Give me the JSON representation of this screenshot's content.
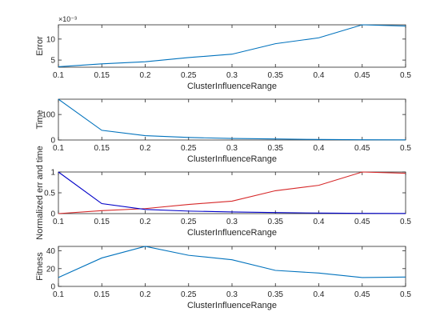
{
  "chart_data": [
    {
      "type": "line",
      "xlabel": "ClusterInfluenceRange",
      "ylabel": "Error",
      "y_exponent_label": "×10⁻³",
      "x": [
        0.1,
        0.15,
        0.2,
        0.25,
        0.3,
        0.35,
        0.4,
        0.45,
        0.5
      ],
      "xticks": [
        "0.1",
        "0.15",
        "0.2",
        "0.25",
        "0.3",
        "0.35",
        "0.4",
        "0.45",
        "0.5"
      ],
      "yticks": [
        "5",
        "10"
      ],
      "ytick_values": [
        5,
        10
      ],
      "xlim": [
        0.1,
        0.5
      ],
      "ylim": [
        3.3,
        13.4
      ],
      "series": [
        {
          "color": "#0072BD",
          "values": [
            3.4,
            4.1,
            4.6,
            5.6,
            6.4,
            8.9,
            10.3,
            13.4,
            13.1
          ]
        }
      ]
    },
    {
      "type": "line",
      "xlabel": "ClusterInfluenceRange",
      "ylabel": "Time",
      "x": [
        0.1,
        0.15,
        0.2,
        0.25,
        0.3,
        0.35,
        0.4,
        0.45,
        0.5
      ],
      "xticks": [
        "0.1",
        "0.15",
        "0.2",
        "0.25",
        "0.3",
        "0.35",
        "0.4",
        "0.45",
        "0.5"
      ],
      "yticks": [
        "0",
        "100"
      ],
      "ytick_values": [
        0,
        100
      ],
      "xlim": [
        0.1,
        0.5
      ],
      "ylim": [
        0,
        160
      ],
      "series": [
        {
          "color": "#0072BD",
          "values": [
            160,
            38,
            17,
            10,
            6,
            4,
            2,
            1,
            0.5
          ]
        }
      ]
    },
    {
      "type": "line",
      "xlabel": "ClusterInfluenceRange",
      "ylabel": "Normalized err and time",
      "x": [
        0.1,
        0.15,
        0.2,
        0.25,
        0.3,
        0.35,
        0.4,
        0.45,
        0.5
      ],
      "xticks": [
        "0.1",
        "0.15",
        "0.2",
        "0.25",
        "0.3",
        "0.35",
        "0.4",
        "0.45",
        "0.5"
      ],
      "yticks": [
        "0",
        "0.5",
        "1"
      ],
      "ytick_values": [
        0,
        0.5,
        1
      ],
      "xlim": [
        0.1,
        0.5
      ],
      "ylim": [
        0,
        1
      ],
      "series": [
        {
          "color": "#D62728",
          "values": [
            0,
            0.07,
            0.12,
            0.22,
            0.3,
            0.55,
            0.68,
            1.0,
            0.97
          ]
        },
        {
          "color": "#0000C8",
          "values": [
            1.0,
            0.24,
            0.1,
            0.06,
            0.04,
            0.025,
            0.013,
            0.006,
            0.003
          ]
        }
      ]
    },
    {
      "type": "line",
      "xlabel": "ClusterInfluenceRange",
      "ylabel": "Fitness",
      "x": [
        0.1,
        0.15,
        0.2,
        0.25,
        0.3,
        0.35,
        0.4,
        0.45,
        0.5
      ],
      "xticks": [
        "0.1",
        "0.15",
        "0.2",
        "0.25",
        "0.3",
        "0.35",
        "0.4",
        "0.45",
        "0.5"
      ],
      "yticks": [
        "0",
        "20",
        "40"
      ],
      "ytick_values": [
        0,
        20,
        40
      ],
      "xlim": [
        0.1,
        0.5
      ],
      "ylim": [
        0,
        45
      ],
      "series": [
        {
          "color": "#0072BD",
          "values": [
            10,
            32,
            45,
            35,
            30,
            18,
            15,
            10,
            10.5
          ]
        }
      ]
    }
  ]
}
